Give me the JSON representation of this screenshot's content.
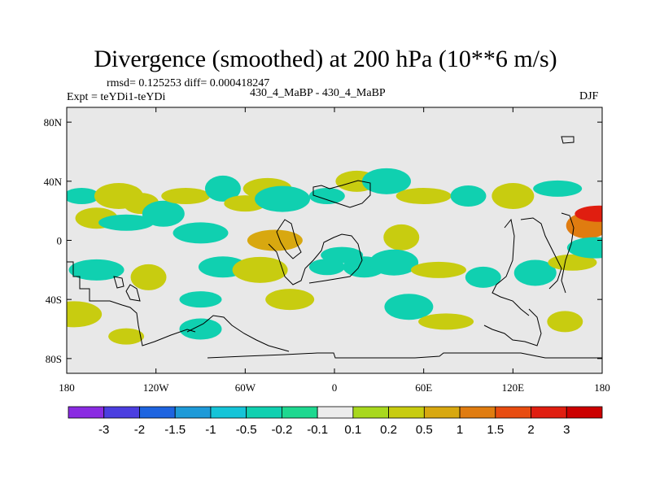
{
  "chart_data": {
    "type": "heatmap",
    "title": "Divergence (smoothed) at 200 hPa (10**6 m/s)",
    "stats_text": "rmsd= 0.125253  diff= 0.000418247",
    "left_subtitle": "Expt = teYDi1-teYDi",
    "center_subtitle": "430_4_MaBP - 430_4_MaBP",
    "right_subtitle": "DJF",
    "x_range": [
      -180,
      180
    ],
    "y_range": [
      -90,
      90
    ],
    "x_ticks": [
      {
        "value": -180,
        "label": "180"
      },
      {
        "value": -120,
        "label": "120W"
      },
      {
        "value": -60,
        "label": "60W"
      },
      {
        "value": 0,
        "label": "0"
      },
      {
        "value": 60,
        "label": "60E"
      },
      {
        "value": 120,
        "label": "120E"
      },
      {
        "value": 180,
        "label": "180"
      }
    ],
    "y_ticks": [
      {
        "value": 80,
        "label": "80N"
      },
      {
        "value": 40,
        "label": "40N"
      },
      {
        "value": 0,
        "label": "0"
      },
      {
        "value": -40,
        "label": "40S"
      },
      {
        "value": -80,
        "label": "80S"
      }
    ],
    "colorbar": {
      "labels": [
        "-3",
        "-2",
        "-1.5",
        "-1",
        "-0.5",
        "-0.2",
        "-0.1",
        "0.1",
        "0.2",
        "0.5",
        "1",
        "1.5",
        "2",
        "3"
      ],
      "colors": [
        "#8a2be2",
        "#4b3ee0",
        "#1e64e0",
        "#1e9ad8",
        "#15c4d8",
        "#10d0b0",
        "#1ed890",
        "#ececec",
        "#a8d81e",
        "#c8cc10",
        "#d8a810",
        "#e07c10",
        "#e84c10",
        "#e01e10",
        "#cc0000"
      ]
    },
    "features": [
      {
        "lon": -170,
        "lat": 30,
        "level": "-0.2"
      },
      {
        "lon": -160,
        "lat": 15,
        "level": "0.2"
      },
      {
        "lon": -145,
        "lat": 30,
        "level": "0.2"
      },
      {
        "lon": -140,
        "lat": 12,
        "level": "-0.2"
      },
      {
        "lon": -130,
        "lat": 25,
        "level": "0.2"
      },
      {
        "lon": -115,
        "lat": 18,
        "level": "-0.2"
      },
      {
        "lon": -100,
        "lat": 30,
        "level": "0.2"
      },
      {
        "lon": -90,
        "lat": 5,
        "level": "-0.2"
      },
      {
        "lon": -75,
        "lat": 35,
        "level": "-0.2"
      },
      {
        "lon": -60,
        "lat": 25,
        "level": "0.2"
      },
      {
        "lon": -45,
        "lat": 35,
        "level": "0.2"
      },
      {
        "lon": -35,
        "lat": 28,
        "level": "-0.2"
      },
      {
        "lon": -5,
        "lat": 30,
        "level": "-0.2"
      },
      {
        "lon": 15,
        "lat": 40,
        "level": "0.2"
      },
      {
        "lon": 35,
        "lat": 40,
        "level": "-0.2"
      },
      {
        "lon": 60,
        "lat": 30,
        "level": "0.2"
      },
      {
        "lon": 90,
        "lat": 30,
        "level": "-0.2"
      },
      {
        "lon": 120,
        "lat": 30,
        "level": "0.2"
      },
      {
        "lon": 150,
        "lat": 35,
        "level": "-0.2"
      },
      {
        "lon": -40,
        "lat": 0,
        "level": "0.5"
      },
      {
        "lon": 45,
        "lat": 2,
        "level": "0.2"
      },
      {
        "lon": 5,
        "lat": -10,
        "level": "-0.2"
      },
      {
        "lon": -75,
        "lat": -18,
        "level": "-0.2"
      },
      {
        "lon": -50,
        "lat": -20,
        "level": "0.2"
      },
      {
        "lon": -5,
        "lat": -18,
        "level": "-0.2"
      },
      {
        "lon": 20,
        "lat": -18,
        "level": "-0.2"
      },
      {
        "lon": 40,
        "lat": -15,
        "level": "-0.2"
      },
      {
        "lon": 70,
        "lat": -20,
        "level": "0.2"
      },
      {
        "lon": 100,
        "lat": -25,
        "level": "-0.2"
      },
      {
        "lon": 135,
        "lat": -22,
        "level": "-0.2"
      },
      {
        "lon": 160,
        "lat": -15,
        "level": "0.2"
      },
      {
        "lon": -160,
        "lat": -20,
        "level": "-0.2"
      },
      {
        "lon": -125,
        "lat": -25,
        "level": "0.2"
      },
      {
        "lon": -90,
        "lat": -40,
        "level": "-0.2"
      },
      {
        "lon": -30,
        "lat": -40,
        "level": "0.2"
      },
      {
        "lon": -175,
        "lat": -50,
        "level": "0.2"
      },
      {
        "lon": -140,
        "lat": -65,
        "level": "0.2"
      },
      {
        "lon": -90,
        "lat": -60,
        "level": "-0.2"
      },
      {
        "lon": 50,
        "lat": -45,
        "level": "-0.2"
      },
      {
        "lon": 75,
        "lat": -55,
        "level": "0.2"
      },
      {
        "lon": 155,
        "lat": -55,
        "level": "0.2"
      },
      {
        "lon": 170,
        "lat": 10,
        "level": "1"
      },
      {
        "lon": 178,
        "lat": 18,
        "level": "2"
      },
      {
        "lon": 175,
        "lat": -5,
        "level": "-0.2"
      }
    ]
  }
}
